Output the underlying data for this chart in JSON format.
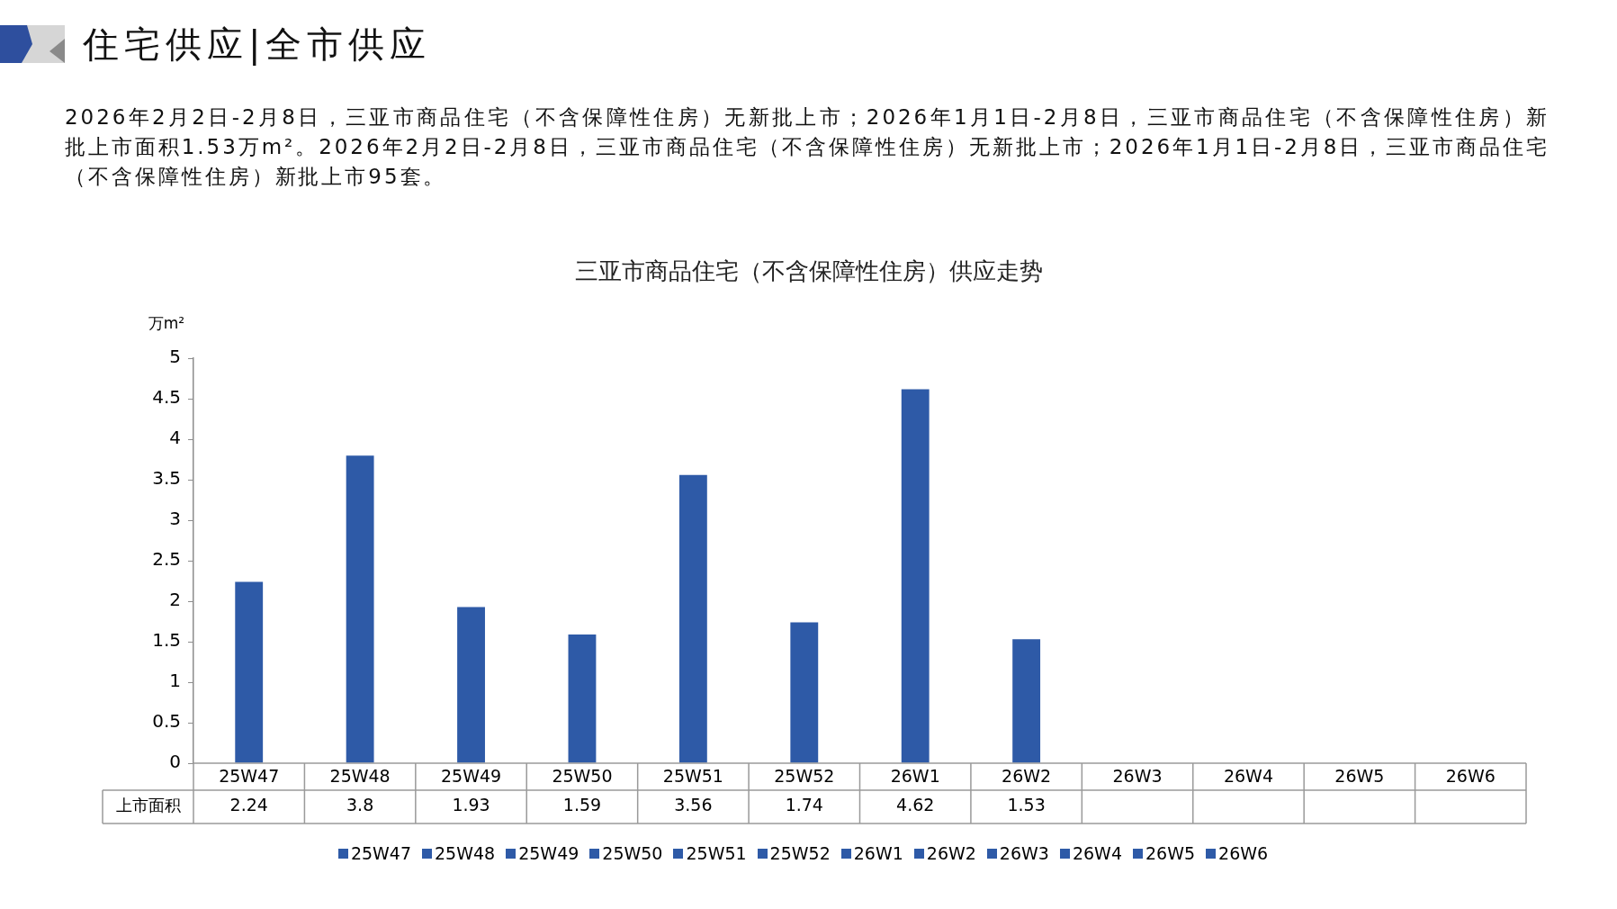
{
  "chart_data": {
    "type": "bar",
    "title": "三亚市商品住宅（不含保障性住房）供应走势",
    "ylabel": "万m²",
    "annotations": [
      "住宅供应|全市供应",
      "2026年2月2日-2月8日，三亚市商品住宅（不含保障性住房）无新批上市；2026年1月1日-2月8日，三亚市商品住宅（不含保障性住房）新批上市面积1.53万m²。2026年2月2日-2月8日，三亚市商品住宅（不含保障性住房）无新批上市；2026年1月1日-2月8日，三亚市商品住宅（不含保障性住房）新批上市95套。"
    ],
    "categories": [
      "25W47",
      "25W48",
      "25W49",
      "25W50",
      "25W51",
      "25W52",
      "26W1",
      "26W2",
      "26W3",
      "26W4",
      "26W5",
      "26W6"
    ],
    "colors": [
      "#2e5aa7",
      "#2e5aa7",
      "#2e5aa7",
      "#2e5aa7",
      "#2e5aa7",
      "#2e5aa7",
      "#2e5aa7",
      "#2e5aa7",
      "#2e5aa7",
      "#2e5aa7",
      "#2e5aa7",
      "#2e5aa7"
    ],
    "series": [
      {
        "name": "上市面积",
        "values": [
          2.24,
          3.8,
          1.93,
          1.59,
          3.56,
          1.74,
          4.62,
          1.53,
          null,
          null,
          null,
          null
        ]
      }
    ],
    "ylim": [
      0,
      5
    ],
    "yticks": [
      0,
      0.5,
      1,
      1.5,
      2,
      2.5,
      3,
      3.5,
      4,
      4.5,
      5
    ],
    "grid": false,
    "legend": "bottom",
    "data_labels": true
  }
}
